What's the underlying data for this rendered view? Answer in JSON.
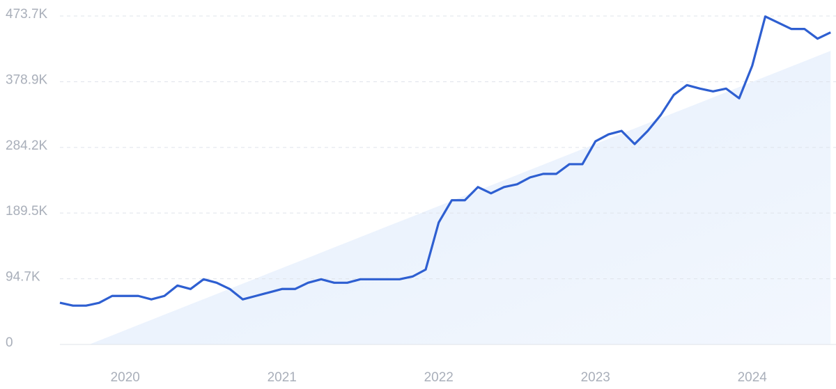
{
  "chart_data": {
    "type": "line",
    "categories": [
      null,
      null,
      null,
      null,
      null,
      "2020",
      null,
      null,
      null,
      null,
      null,
      null,
      null,
      null,
      null,
      null,
      null,
      "2021",
      null,
      null,
      null,
      null,
      null,
      null,
      null,
      null,
      null,
      null,
      null,
      "2022",
      null,
      null,
      null,
      null,
      null,
      null,
      null,
      null,
      null,
      null,
      null,
      "2023",
      null,
      null,
      null,
      null,
      null,
      null,
      null,
      null,
      null,
      null,
      null,
      "2024",
      null,
      null,
      null,
      null,
      null,
      null
    ],
    "values": [
      60200,
      56000,
      56000,
      60000,
      70000,
      70000,
      70000,
      65000,
      70000,
      85000,
      80000,
      94000,
      89000,
      80000,
      65000,
      70000,
      75000,
      80000,
      80000,
      89000,
      94000,
      89000,
      89000,
      94000,
      94000,
      94000,
      94000,
      98000,
      108000,
      176000,
      208000,
      208000,
      227000,
      218000,
      227000,
      231000,
      241000,
      246000,
      246000,
      260000,
      260000,
      293000,
      303000,
      308000,
      289000,
      308000,
      331000,
      360000,
      374000,
      369000,
      365000,
      369000,
      355000,
      402000,
      473000,
      464000,
      455000,
      455000,
      441000,
      450000
    ],
    "color": "#2e5fd1",
    "trend": {
      "color": "#e4eefc",
      "values": [
        -16700,
        -9300,
        -1800,
        5700,
        13100,
        20600,
        28100,
        35500,
        43000,
        50400,
        57900,
        65400,
        72800,
        80300,
        87700,
        95200,
        102700,
        110100,
        117600,
        125000,
        132500,
        140000,
        147400,
        154900,
        162300,
        169800,
        177300,
        184700,
        192200,
        199600,
        207100,
        214600,
        222000,
        229500,
        236900,
        244400,
        251900,
        259300,
        266800,
        274200,
        281700,
        289200,
        296600,
        304100,
        311500,
        319000,
        326500,
        333900,
        341400,
        348800,
        356300,
        363800,
        371200,
        378700,
        386100,
        393600,
        401100,
        408500,
        416000,
        423400
      ]
    },
    "ylim": [
      0,
      473700
    ],
    "yticks": [
      0,
      {
        "value": 94700,
        "label": "94.7K"
      },
      {
        "value": 189500,
        "label": "189.5K"
      },
      {
        "value": 284200,
        "label": "284.2K"
      },
      {
        "value": 378900,
        "label": "378.9K"
      },
      {
        "value": 473700,
        "label": "473.7K"
      }
    ],
    "grid": true
  }
}
